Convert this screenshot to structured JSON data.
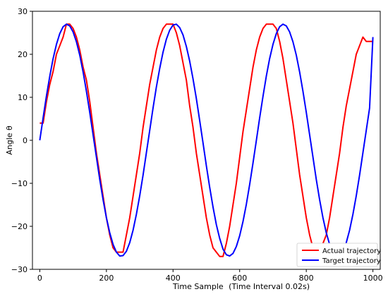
{
  "chart_data": {
    "type": "line",
    "xlabel": "Time Sample",
    "xlabel_suffix": "(Time Interval 0.02s)",
    "ylabel": "Angle θ",
    "xlim": [
      -22,
      1022
    ],
    "ylim": [
      -30,
      30
    ],
    "x_ticks": [
      0,
      200,
      400,
      600,
      800,
      1000
    ],
    "y_ticks": [
      -30,
      -20,
      -10,
      0,
      10,
      20,
      30
    ],
    "grid": false,
    "legend_position": "lower-right",
    "series": [
      {
        "name": "Actual trajectory",
        "color": "#ff0000",
        "x": [
          0,
          10,
          20,
          30,
          40,
          50,
          60,
          70,
          80,
          90,
          100,
          110,
          120,
          130,
          140,
          150,
          160,
          170,
          180,
          190,
          200,
          210,
          220,
          230,
          240,
          250,
          260,
          270,
          280,
          290,
          300,
          310,
          320,
          330,
          340,
          350,
          360,
          370,
          380,
          390,
          400,
          410,
          420,
          430,
          440,
          450,
          460,
          470,
          480,
          490,
          500,
          510,
          520,
          530,
          540,
          550,
          560,
          570,
          580,
          590,
          600,
          610,
          620,
          630,
          640,
          650,
          660,
          670,
          680,
          690,
          700,
          710,
          720,
          730,
          740,
          750,
          760,
          770,
          780,
          790,
          800,
          810,
          820,
          830,
          840,
          850,
          860,
          870,
          880,
          890,
          900,
          910,
          920,
          930,
          940,
          950,
          960,
          970,
          980,
          990,
          1000
        ],
        "y": [
          4,
          4,
          9,
          13,
          16,
          20,
          22,
          24,
          27,
          27,
          26,
          24,
          21,
          17,
          14,
          9,
          3,
          -3,
          -8,
          -13,
          -18,
          -22,
          -25,
          -26,
          -26,
          -26,
          -22,
          -18,
          -13,
          -8,
          -3,
          3,
          8,
          13,
          17,
          21,
          24,
          26,
          27,
          27,
          27,
          25,
          22,
          18,
          14,
          8,
          3,
          -3,
          -8,
          -13,
          -18,
          -22,
          -25,
          -26,
          -27,
          -27,
          -24,
          -20,
          -15,
          -10,
          -4,
          2,
          7,
          12,
          17,
          21,
          24,
          26,
          27,
          27,
          27,
          26,
          23,
          19,
          14,
          9,
          4,
          -2,
          -8,
          -13,
          -18,
          -22,
          -25,
          -25,
          -26,
          -24,
          -22,
          -18,
          -13,
          -8,
          -3,
          3,
          8,
          12,
          16,
          20,
          22,
          24,
          23,
          23,
          23
        ]
      },
      {
        "name": "Target trajectory",
        "color": "#0000ff",
        "x": [
          0,
          10,
          20,
          30,
          40,
          50,
          60,
          70,
          80,
          90,
          100,
          110,
          120,
          130,
          140,
          150,
          160,
          170,
          180,
          190,
          200,
          210,
          220,
          230,
          240,
          250,
          260,
          270,
          280,
          290,
          300,
          310,
          320,
          330,
          340,
          350,
          360,
          370,
          380,
          390,
          400,
          410,
          420,
          430,
          440,
          450,
          460,
          470,
          480,
          490,
          500,
          510,
          520,
          530,
          540,
          550,
          560,
          570,
          580,
          590,
          600,
          610,
          620,
          630,
          640,
          650,
          660,
          670,
          680,
          690,
          700,
          710,
          720,
          730,
          740,
          750,
          760,
          770,
          780,
          790,
          800,
          810,
          820,
          830,
          840,
          850,
          860,
          870,
          880,
          890,
          900,
          910,
          920,
          930,
          940,
          950,
          960,
          970,
          980,
          990,
          1000
        ],
        "y": [
          0,
          5.2,
          10.3,
          14.9,
          19.0,
          22.3,
          24.8,
          26.4,
          27.0,
          26.6,
          25.2,
          22.9,
          19.8,
          15.9,
          11.4,
          6.5,
          1.3,
          -3.9,
          -9.1,
          -13.8,
          -18.0,
          -21.5,
          -24.2,
          -26.0,
          -26.9,
          -26.8,
          -25.8,
          -23.8,
          -20.9,
          -17.2,
          -12.9,
          -8.1,
          -2.9,
          2.3,
          7.5,
          12.4,
          16.7,
          20.5,
          23.5,
          25.6,
          26.8,
          27.0,
          26.2,
          24.5,
          21.8,
          18.4,
          14.3,
          9.7,
          4.6,
          -0.6,
          -5.9,
          -10.9,
          -15.5,
          -19.6,
          -22.8,
          -25.3,
          -26.6,
          -26.9,
          -26.3,
          -24.7,
          -22.2,
          -18.9,
          -14.9,
          -10.3,
          -5.3,
          -0.1,
          5.2,
          10.2,
          14.9,
          19.0,
          22.3,
          24.8,
          26.4,
          27.0,
          26.6,
          25.2,
          22.9,
          19.8,
          15.9,
          11.4,
          6.5,
          1.3,
          -3.9,
          -9.1,
          -13.8,
          -18.0,
          -21.5,
          -24.2,
          -26.0,
          -26.9,
          -26.8,
          -25.8,
          -23.8,
          -20.9,
          -17.2,
          -12.9,
          -8.1,
          -2.9,
          2.3,
          7.5,
          24.0
        ]
      }
    ]
  }
}
